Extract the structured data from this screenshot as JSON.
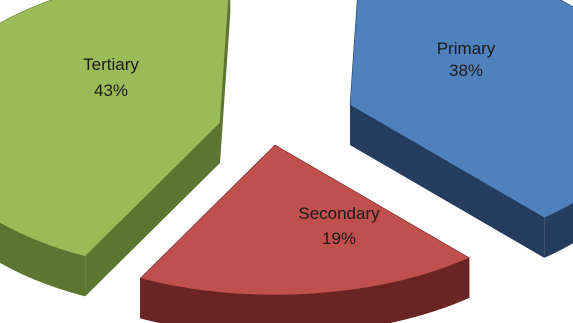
{
  "chart_data": {
    "type": "pie",
    "title": "",
    "categories": [
      "Primary",
      "Secondary",
      "Tertiary"
    ],
    "values": [
      38,
      19,
      43
    ],
    "value_labels": [
      "38%",
      "19%",
      "43%"
    ],
    "colors": [
      "#4f81bd",
      "#c0504d",
      "#9bbb59"
    ],
    "side_colors": [
      "#243c5e",
      "#6b2424",
      "#5c7530"
    ],
    "style": "3d-exploded",
    "legend": "none"
  }
}
